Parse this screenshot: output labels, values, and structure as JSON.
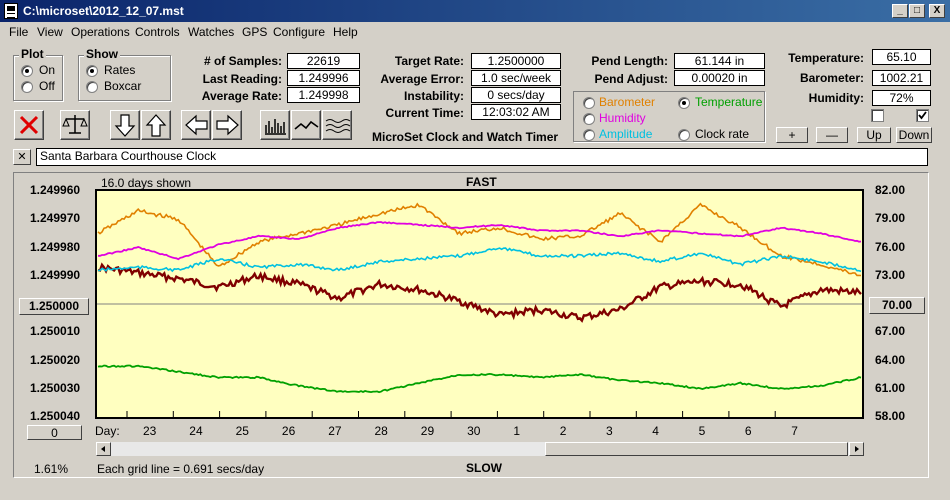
{
  "window": {
    "title": "C:\\microset\\2012_12_07.mst",
    "controls": [
      "_",
      "□",
      "X"
    ]
  },
  "menu": [
    "File",
    "View",
    "Operations",
    "Controls",
    "Watches",
    "GPS",
    "Configure",
    "Help"
  ],
  "plot_group": {
    "title": "Plot",
    "options": [
      "On",
      "Off"
    ],
    "selected": "On"
  },
  "show_group": {
    "title": "Show",
    "options": [
      "Rates",
      "Boxcar"
    ],
    "selected": "Rates"
  },
  "stats": {
    "samples_label": "# of Samples:",
    "samples": "22619",
    "last_reading_label": "Last Reading:",
    "last_reading": "1.249996",
    "average_rate_label": "Average Rate:",
    "average_rate": "1.249998"
  },
  "rates": {
    "target_label": "Target Rate:",
    "target": "1.2500000",
    "avg_error_label": "Average Error:",
    "avg_error": "1.0 sec/week",
    "instability_label": "Instability:",
    "instability": "0 secs/day",
    "current_time_label": "Current Time:",
    "current_time": "12:03:02 AM"
  },
  "pendulum": {
    "length_label": "Pend Length:",
    "length": "61.144 in",
    "adjust_label": "Pend Adjust:",
    "adjust": "0.00020 in"
  },
  "series_select": {
    "options": [
      {
        "label": "Barometer",
        "color": "#e08000"
      },
      {
        "label": "Temperature",
        "color": "#00a000"
      },
      {
        "label": "Humidity",
        "color": "#e000e0"
      },
      {
        "label": "Clock rate",
        "color": "#000000"
      },
      {
        "label": "Amplitude",
        "color": "#00c0e0"
      }
    ],
    "selected": "Temperature"
  },
  "environment": {
    "temperature_label": "Temperature:",
    "temperature": "65.10",
    "barometer_label": "Barometer:",
    "barometer": "1002.21",
    "humidity_label": "Humidity:",
    "humidity": "72%"
  },
  "adjust_buttons": [
    "+",
    "—",
    "Up",
    "Down"
  ],
  "software_title": "MicroSet Clock and Watch Timer",
  "clock_name": "Santa Barbara Courthouse Clock",
  "close_glyph": "✕",
  "graph": {
    "days_shown": "16.0 days shown",
    "top_label": "FAST",
    "bottom_label": "SLOW",
    "grid_note": "Each grid line = 0.691 secs/day",
    "percent": "1.61%",
    "left_button": "1.250000",
    "right_button": "70.00",
    "zero_button": "0",
    "day_label": "Day:"
  },
  "chart_data": {
    "type": "line",
    "title": "",
    "xlabel": "Day:",
    "left_axis_ticks": [
      "1.249960",
      "1.249970",
      "1.249980",
      "1.249990",
      "1.250000",
      "1.250010",
      "1.250020",
      "1.250030",
      "1.250040"
    ],
    "right_axis_ticks": [
      "82.00",
      "79.00",
      "76.00",
      "73.00",
      "70.00",
      "67.00",
      "64.00",
      "61.00",
      "58.00"
    ],
    "x_ticks": [
      "23",
      "24",
      "25",
      "26",
      "27",
      "28",
      "29",
      "30",
      "1",
      "2",
      "3",
      "4",
      "5",
      "6",
      "7"
    ],
    "ylim_left": [
      1.25004,
      1.24996
    ],
    "ylim_right": [
      58,
      82
    ],
    "grid": false,
    "series": [
      {
        "name": "Clock rate",
        "color": "#800000",
        "values": [
          1.249987,
          1.249989,
          1.249991,
          1.249994,
          1.24999,
          1.249993,
          1.249998,
          1.249993,
          1.249995,
          1.249999,
          1.250004,
          1.250002,
          1.250005,
          1.250002,
          1.249994,
          1.249992,
          1.249993,
          1.250001,
          1.249995,
          1.249996
        ]
      },
      {
        "name": "Barometer",
        "color": "#e08000",
        "values": [
          1.249975,
          1.249967,
          1.24997,
          1.249987,
          1.249978,
          1.249975,
          1.249972,
          1.249968,
          1.249965,
          1.249975,
          1.249973,
          1.249977,
          1.249976,
          1.249968,
          1.249978,
          1.249965,
          1.249973,
          1.249983,
          1.249986,
          1.24999
        ]
      },
      {
        "name": "Humidity",
        "color": "#e000e0",
        "values": [
          1.249983,
          1.24998,
          1.249984,
          1.249979,
          1.249976,
          1.249977,
          1.249973,
          1.249971,
          1.249972,
          1.249973,
          1.249972,
          1.249974,
          1.249974,
          1.249976,
          1.249974,
          1.249975,
          1.249976,
          1.249973,
          1.249975,
          1.249978
        ]
      },
      {
        "name": "Amplitude",
        "color": "#00c0e0",
        "values": [
          1.249988,
          1.249987,
          1.249988,
          1.249984,
          1.249987,
          1.249986,
          1.249988,
          1.249985,
          1.249984,
          1.249983,
          1.24998,
          1.249983,
          1.249983,
          1.249982,
          1.249985,
          1.249982,
          1.249986,
          1.249983,
          1.249985,
          1.249988
        ]
      },
      {
        "name": "Temperature",
        "color": "#00a000",
        "values": [
          1.250022,
          1.250022,
          1.250024,
          1.250026,
          1.250026,
          1.250029,
          1.250031,
          1.250031,
          1.250028,
          1.250025,
          1.250025,
          1.250026,
          1.250025,
          1.250027,
          1.250028,
          1.25003,
          1.250028,
          1.25003,
          1.250029,
          1.250026
        ]
      }
    ]
  }
}
